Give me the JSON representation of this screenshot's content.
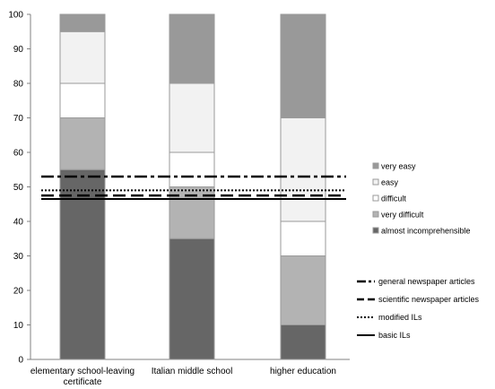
{
  "chart_data": {
    "type": "bar",
    "stacked": true,
    "categories": [
      [
        "elementary school-leaving",
        "certificate"
      ],
      [
        "Italian middle school"
      ],
      [
        "higher education"
      ]
    ],
    "series": [
      {
        "name": "almost incomprehensible",
        "color": "#666666",
        "values": [
          55,
          35,
          10
        ]
      },
      {
        "name": "very difficult",
        "color": "#b3b3b3",
        "values": [
          15,
          15,
          20
        ]
      },
      {
        "name": "difficult",
        "color": "#ffffff",
        "values": [
          10,
          10,
          10
        ]
      },
      {
        "name": "easy",
        "color": "#f2f2f2",
        "values": [
          15,
          20,
          30
        ]
      },
      {
        "name": "very easy",
        "color": "#999999",
        "values": [
          5,
          20,
          30
        ]
      }
    ],
    "ylim": [
      0,
      100
    ],
    "yticks": [
      0,
      10,
      20,
      30,
      40,
      50,
      60,
      70,
      80,
      90,
      100
    ],
    "reference_lines": [
      {
        "name": "general newspaper articles",
        "value": 53,
        "style": "dash-dot"
      },
      {
        "name": "scientific newspaper articles",
        "value": 47.5,
        "style": "dashed"
      },
      {
        "name": "modified ILs",
        "value": 49,
        "style": "dotted"
      },
      {
        "name": "basic ILs",
        "value": 46.5,
        "style": "solid"
      }
    ],
    "grid": false,
    "legend_position": "right"
  }
}
